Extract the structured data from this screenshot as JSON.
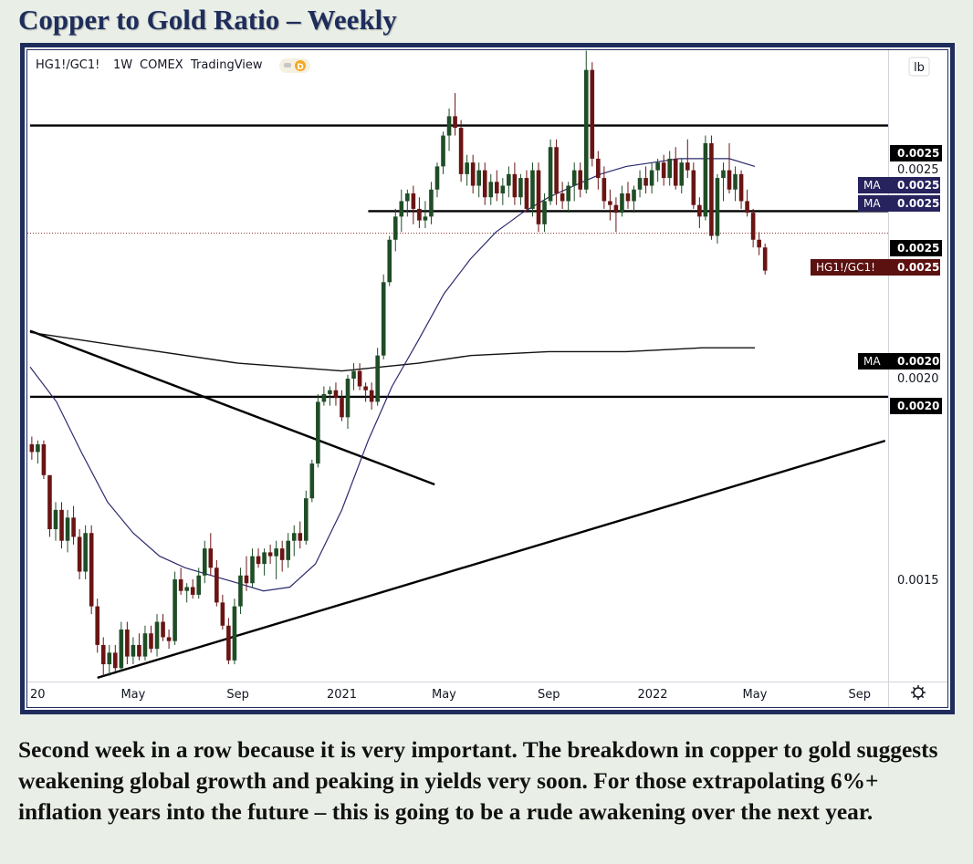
{
  "page_title": "Copper to Gold Ratio – Weekly",
  "caption": "Second week in a row because it is very important. The breakdown in copper to gold suggests weakening global growth and peaking in yields very soon. For those extrapolating 6%+ inflation years into the future – this is going to be a rude awakening over the next year.",
  "chart_legend": {
    "symbol": "HG1!/GC1!",
    "interval": "1W",
    "exchange": "COMEX",
    "source": "TradingView",
    "badge": "D"
  },
  "scale_button": "lb",
  "colors": {
    "up": "#1f4d26",
    "down": "#6a1414",
    "ma_short": "#2a2a6e",
    "ma_long": "#111111",
    "frame": "#1f2d5c"
  },
  "chart_data": {
    "type": "candlestick",
    "x": [
      "2020-01-01",
      "2022-10-01"
    ],
    "xticks": [
      {
        "date": "2020-01-01",
        "label": "20"
      },
      {
        "date": "2020-05-01",
        "label": "May"
      },
      {
        "date": "2020-09-01",
        "label": "Sep"
      },
      {
        "date": "2021-01-01",
        "label": "2021"
      },
      {
        "date": "2021-05-01",
        "label": "May"
      },
      {
        "date": "2021-09-01",
        "label": "Sep"
      },
      {
        "date": "2022-01-01",
        "label": "2022"
      },
      {
        "date": "2022-05-01",
        "label": "May"
      },
      {
        "date": "2022-09-01",
        "label": "Sep"
      }
    ],
    "ylim": [
      0.00121,
      0.00291
    ],
    "yticks": [
      "0.0025",
      "0.0020",
      "0.0015"
    ],
    "candles": [
      [
        "2020-01-03",
        0.00185,
        0.00187,
        0.00181,
        0.00183
      ],
      [
        "2020-01-10",
        0.00183,
        0.00186,
        0.0018,
        0.00185
      ],
      [
        "2020-01-17",
        0.00185,
        0.00186,
        0.00176,
        0.00177
      ],
      [
        "2020-01-24",
        0.00177,
        0.00177,
        0.00161,
        0.00163
      ],
      [
        "2020-01-31",
        0.00163,
        0.0017,
        0.0016,
        0.00168
      ],
      [
        "2020-02-07",
        0.00168,
        0.0017,
        0.00158,
        0.0016
      ],
      [
        "2020-02-14",
        0.0016,
        0.00168,
        0.00157,
        0.00166
      ],
      [
        "2020-02-21",
        0.00166,
        0.00169,
        0.00159,
        0.00161
      ],
      [
        "2020-02-28",
        0.00161,
        0.00163,
        0.0015,
        0.00152
      ],
      [
        "2020-03-06",
        0.00152,
        0.00164,
        0.0015,
        0.00162
      ],
      [
        "2020-03-13",
        0.00162,
        0.00164,
        0.00141,
        0.00143
      ],
      [
        "2020-03-20",
        0.00143,
        0.00145,
        0.00131,
        0.00133
      ],
      [
        "2020-03-27",
        0.00133,
        0.00135,
        0.00125,
        0.00128
      ],
      [
        "2020-04-03",
        0.00128,
        0.00133,
        0.00125,
        0.00131
      ],
      [
        "2020-04-10",
        0.00131,
        0.00133,
        0.00126,
        0.00127
      ],
      [
        "2020-04-17",
        0.00127,
        0.00139,
        0.00126,
        0.00137
      ],
      [
        "2020-04-24",
        0.00137,
        0.00139,
        0.00128,
        0.0013
      ],
      [
        "2020-05-01",
        0.0013,
        0.00135,
        0.00128,
        0.00133
      ],
      [
        "2020-05-08",
        0.00133,
        0.00136,
        0.00129,
        0.0013
      ],
      [
        "2020-05-15",
        0.0013,
        0.00138,
        0.00129,
        0.00136
      ],
      [
        "2020-05-22",
        0.00136,
        0.00138,
        0.00131,
        0.00132
      ],
      [
        "2020-05-29",
        0.00132,
        0.00141,
        0.0013,
        0.00139
      ],
      [
        "2020-06-05",
        0.00139,
        0.00141,
        0.00134,
        0.00135
      ],
      [
        "2020-06-12",
        0.00135,
        0.00137,
        0.00132,
        0.00134
      ],
      [
        "2020-06-19",
        0.00134,
        0.00152,
        0.00133,
        0.0015
      ],
      [
        "2020-06-26",
        0.0015,
        0.00153,
        0.00146,
        0.00147
      ],
      [
        "2020-07-03",
        0.00147,
        0.00149,
        0.00144,
        0.00148
      ],
      [
        "2020-07-10",
        0.00148,
        0.0015,
        0.00145,
        0.00146
      ],
      [
        "2020-07-17",
        0.00146,
        0.00153,
        0.00145,
        0.00151
      ],
      [
        "2020-07-24",
        0.00151,
        0.0016,
        0.00149,
        0.00158
      ],
      [
        "2020-07-31",
        0.00158,
        0.00162,
        0.00151,
        0.00153
      ],
      [
        "2020-08-07",
        0.00153,
        0.00155,
        0.00143,
        0.00144
      ],
      [
        "2020-08-14",
        0.00144,
        0.00146,
        0.00137,
        0.00138
      ],
      [
        "2020-08-21",
        0.00138,
        0.0014,
        0.00128,
        0.00129
      ],
      [
        "2020-08-28",
        0.00129,
        0.00145,
        0.00128,
        0.00143
      ],
      [
        "2020-09-04",
        0.00143,
        0.00153,
        0.00141,
        0.00151
      ],
      [
        "2020-09-11",
        0.00151,
        0.00156,
        0.00147,
        0.00149
      ],
      [
        "2020-09-18",
        0.00149,
        0.00158,
        0.00148,
        0.00156
      ],
      [
        "2020-09-25",
        0.00156,
        0.00158,
        0.00153,
        0.00154
      ],
      [
        "2020-10-02",
        0.00154,
        0.00158,
        0.00151,
        0.00157
      ],
      [
        "2020-10-09",
        0.00157,
        0.00159,
        0.00154,
        0.00156
      ],
      [
        "2020-10-16",
        0.00156,
        0.0016,
        0.0015,
        0.00158
      ],
      [
        "2020-10-23",
        0.00158,
        0.0016,
        0.00152,
        0.00155
      ],
      [
        "2020-10-30",
        0.00155,
        0.00162,
        0.00153,
        0.0016
      ],
      [
        "2020-11-06",
        0.0016,
        0.00164,
        0.00156,
        0.00162
      ],
      [
        "2020-11-13",
        0.00162,
        0.00165,
        0.00158,
        0.0016
      ],
      [
        "2020-11-20",
        0.0016,
        0.00173,
        0.00159,
        0.00171
      ],
      [
        "2020-11-27",
        0.00171,
        0.00181,
        0.0017,
        0.0018
      ],
      [
        "2020-12-04",
        0.0018,
        0.00198,
        0.00179,
        0.00196
      ],
      [
        "2020-12-11",
        0.00196,
        0.002,
        0.00195,
        0.00198
      ],
      [
        "2020-12-18",
        0.00198,
        0.002,
        0.00195,
        0.00199
      ],
      [
        "2020-12-25",
        0.00199,
        0.00201,
        0.00195,
        0.00197
      ],
      [
        "2021-01-01",
        0.00197,
        0.00199,
        0.00191,
        0.00192
      ],
      [
        "2021-01-08",
        0.00192,
        0.00203,
        0.00189,
        0.00202
      ],
      [
        "2021-01-15",
        0.00202,
        0.00206,
        0.00199,
        0.00204
      ],
      [
        "2021-01-22",
        0.00204,
        0.00206,
        0.00199,
        0.002
      ],
      [
        "2021-01-29",
        0.002,
        0.00201,
        0.00196,
        0.00199
      ],
      [
        "2021-02-05",
        0.00199,
        0.00201,
        0.00194,
        0.00196
      ],
      [
        "2021-02-12",
        0.00196,
        0.0021,
        0.00195,
        0.00208
      ],
      [
        "2021-02-19",
        0.00208,
        0.00229,
        0.00207,
        0.00227
      ],
      [
        "2021-02-26",
        0.00227,
        0.00239,
        0.00226,
        0.00238
      ],
      [
        "2021-03-05",
        0.00238,
        0.00246,
        0.00235,
        0.00244
      ],
      [
        "2021-03-12",
        0.00244,
        0.00251,
        0.0024,
        0.00248
      ],
      [
        "2021-03-19",
        0.00248,
        0.00251,
        0.00244,
        0.0025
      ],
      [
        "2021-03-26",
        0.0025,
        0.00252,
        0.00242,
        0.00246
      ],
      [
        "2021-04-02",
        0.00246,
        0.00249,
        0.00241,
        0.00243
      ],
      [
        "2021-04-09",
        0.00243,
        0.00248,
        0.00241,
        0.00244
      ],
      [
        "2021-04-16",
        0.00244,
        0.00253,
        0.00242,
        0.00251
      ],
      [
        "2021-04-23",
        0.00251,
        0.00258,
        0.00249,
        0.00257
      ],
      [
        "2021-04-30",
        0.00257,
        0.00266,
        0.00255,
        0.00265
      ],
      [
        "2021-05-07",
        0.00265,
        0.00272,
        0.00261,
        0.0027
      ],
      [
        "2021-05-14",
        0.0027,
        0.00276,
        0.00265,
        0.00267
      ],
      [
        "2021-05-21",
        0.00267,
        0.00269,
        0.00253,
        0.00255
      ],
      [
        "2021-05-28",
        0.00255,
        0.0026,
        0.00252,
        0.00258
      ],
      [
        "2021-06-04",
        0.00258,
        0.0026,
        0.0025,
        0.00252
      ],
      [
        "2021-06-11",
        0.00252,
        0.00258,
        0.00249,
        0.00256
      ],
      [
        "2021-06-18",
        0.00256,
        0.00258,
        0.00247,
        0.00249
      ],
      [
        "2021-06-25",
        0.00249,
        0.00255,
        0.00247,
        0.00253
      ],
      [
        "2021-07-02",
        0.00253,
        0.00256,
        0.00248,
        0.0025
      ],
      [
        "2021-07-09",
        0.0025,
        0.00254,
        0.00247,
        0.00252
      ],
      [
        "2021-07-16",
        0.00252,
        0.00257,
        0.00249,
        0.00255
      ],
      [
        "2021-07-23",
        0.00255,
        0.00258,
        0.00247,
        0.00249
      ],
      [
        "2021-07-30",
        0.00249,
        0.00255,
        0.00247,
        0.00254
      ],
      [
        "2021-08-06",
        0.00254,
        0.00256,
        0.00245,
        0.00246
      ],
      [
        "2021-08-13",
        0.00246,
        0.00258,
        0.00244,
        0.00256
      ],
      [
        "2021-08-20",
        0.00256,
        0.00258,
        0.0024,
        0.00242
      ],
      [
        "2021-08-27",
        0.00242,
        0.0025,
        0.0024,
        0.00248
      ],
      [
        "2021-09-03",
        0.00248,
        0.00264,
        0.00247,
        0.00262
      ],
      [
        "2021-09-10",
        0.00262,
        0.00264,
        0.00247,
        0.0025
      ],
      [
        "2021-09-17",
        0.0025,
        0.00253,
        0.00246,
        0.00248
      ],
      [
        "2021-09-24",
        0.00248,
        0.00253,
        0.00245,
        0.00252
      ],
      [
        "2021-10-01",
        0.00252,
        0.00258,
        0.00248,
        0.00256
      ],
      [
        "2021-10-08",
        0.00256,
        0.00258,
        0.00249,
        0.00251
      ],
      [
        "2021-10-15",
        0.00251,
        0.00287,
        0.0025,
        0.00282
      ],
      [
        "2021-10-22",
        0.00282,
        0.00284,
        0.00257,
        0.00259
      ],
      [
        "2021-10-29",
        0.00259,
        0.00261,
        0.00251,
        0.00254
      ],
      [
        "2021-11-05",
        0.00254,
        0.00257,
        0.00246,
        0.00248
      ],
      [
        "2021-11-12",
        0.00248,
        0.00251,
        0.00243,
        0.00247
      ],
      [
        "2021-11-19",
        0.00247,
        0.00249,
        0.0024,
        0.00245
      ],
      [
        "2021-11-26",
        0.00245,
        0.00252,
        0.00244,
        0.0025
      ],
      [
        "2021-12-03",
        0.0025,
        0.00253,
        0.00246,
        0.00248
      ],
      [
        "2021-12-10",
        0.00248,
        0.00252,
        0.00245,
        0.00251
      ],
      [
        "2021-12-17",
        0.00251,
        0.00256,
        0.00249,
        0.00254
      ],
      [
        "2021-12-24",
        0.00254,
        0.00257,
        0.0025,
        0.00252
      ],
      [
        "2021-12-31",
        0.00252,
        0.00258,
        0.0025,
        0.00256
      ],
      [
        "2022-01-07",
        0.00256,
        0.00259,
        0.00253,
        0.00258
      ],
      [
        "2022-01-14",
        0.00258,
        0.0026,
        0.00252,
        0.00254
      ],
      [
        "2022-01-21",
        0.00254,
        0.00261,
        0.00252,
        0.00259
      ],
      [
        "2022-01-28",
        0.00259,
        0.00262,
        0.00251,
        0.00252
      ],
      [
        "2022-02-04",
        0.00252,
        0.00259,
        0.0025,
        0.00258
      ],
      [
        "2022-02-11",
        0.00258,
        0.00264,
        0.00254,
        0.00256
      ],
      [
        "2022-02-18",
        0.00256,
        0.00258,
        0.00246,
        0.00247
      ],
      [
        "2022-02-25",
        0.00247,
        0.00249,
        0.00241,
        0.00244
      ],
      [
        "2022-03-04",
        0.00244,
        0.00265,
        0.00243,
        0.00263
      ],
      [
        "2022-03-11",
        0.00263,
        0.00265,
        0.00238,
        0.00239
      ],
      [
        "2022-03-18",
        0.00239,
        0.00255,
        0.00237,
        0.00254
      ],
      [
        "2022-03-25",
        0.00254,
        0.00258,
        0.00248,
        0.00256
      ],
      [
        "2022-04-01",
        0.00256,
        0.00263,
        0.0025,
        0.00251
      ],
      [
        "2022-04-08",
        0.00251,
        0.00257,
        0.00248,
        0.00255
      ],
      [
        "2022-04-15",
        0.00255,
        0.00256,
        0.00246,
        0.00248
      ],
      [
        "2022-04-22",
        0.00248,
        0.00251,
        0.00244,
        0.00245
      ],
      [
        "2022-04-29",
        0.00245,
        0.00246,
        0.00236,
        0.00238
      ],
      [
        "2022-05-06",
        0.00238,
        0.0024,
        0.00234,
        0.00236
      ],
      [
        "2022-05-13",
        0.00236,
        0.00237,
        0.00229,
        0.0023
      ]
    ],
    "ma_short": [
      [
        "2020-01-01",
        0.00205
      ],
      [
        "2020-02-01",
        0.00196
      ],
      [
        "2020-03-01",
        0.00183
      ],
      [
        "2020-04-01",
        0.0017
      ],
      [
        "2020-05-01",
        0.00162
      ],
      [
        "2020-06-01",
        0.00156
      ],
      [
        "2020-07-01",
        0.00153
      ],
      [
        "2020-08-01",
        0.00151
      ],
      [
        "2020-09-01",
        0.00149
      ],
      [
        "2020-10-01",
        0.00147
      ],
      [
        "2020-11-01",
        0.00148
      ],
      [
        "2020-12-01",
        0.00154
      ],
      [
        "2021-01-01",
        0.00168
      ],
      [
        "2021-02-01",
        0.00186
      ],
      [
        "2021-03-01",
        0.002
      ],
      [
        "2021-04-01",
        0.00212
      ],
      [
        "2021-05-01",
        0.00224
      ],
      [
        "2021-06-01",
        0.00233
      ],
      [
        "2021-07-01",
        0.0024
      ],
      [
        "2021-08-01",
        0.00245
      ],
      [
        "2021-09-01",
        0.00249
      ],
      [
        "2021-10-01",
        0.00252
      ],
      [
        "2021-11-01",
        0.00255
      ],
      [
        "2021-12-01",
        0.00257
      ],
      [
        "2022-01-01",
        0.00258
      ],
      [
        "2022-02-01",
        0.00259
      ],
      [
        "2022-03-01",
        0.00259
      ],
      [
        "2022-04-01",
        0.00259
      ],
      [
        "2022-05-01",
        0.00257
      ]
    ],
    "ma_long": [
      [
        "2020-01-01",
        0.00214
      ],
      [
        "2020-05-01",
        0.0021
      ],
      [
        "2020-09-01",
        0.00206
      ],
      [
        "2021-01-01",
        0.00204
      ],
      [
        "2021-04-01",
        0.00206
      ],
      [
        "2021-06-01",
        0.00208
      ],
      [
        "2021-09-01",
        0.00209
      ],
      [
        "2021-12-01",
        0.00209
      ],
      [
        "2022-03-01",
        0.0021
      ],
      [
        "2022-05-01",
        0.0021
      ]
    ],
    "hlines": [
      {
        "y": 0.002676,
        "x0": "2020-01-01"
      },
      {
        "y": 0.002454,
        "x0": "2021-02-01"
      },
      {
        "y": 0.001973,
        "x0": "2020-01-01"
      }
    ],
    "trendlines": [
      {
        "from": [
          "2020-01-01",
          0.002144
        ],
        "to": [
          "2021-04-20",
          0.001746
        ]
      },
      {
        "from": [
          "2020-03-20",
          0.001245
        ],
        "to": [
          "2022-10-01",
          0.001859
        ]
      }
    ],
    "price_line": 0.002397,
    "price_tags": [
      {
        "label": "",
        "value": "0.0025",
        "kind": "line"
      },
      {
        "label": "",
        "value": "0.0025",
        "kind": "plain"
      },
      {
        "label": "MA",
        "value": "0.0025",
        "kind": "ma"
      },
      {
        "label": "MA",
        "value": "0.0025",
        "kind": "ma"
      },
      {
        "label": "",
        "value": "0.0025",
        "kind": "line"
      },
      {
        "label": "HG1!/GC1!",
        "value": "0.0025",
        "kind": "price"
      },
      {
        "label": "MA",
        "value": "0.0020",
        "kind": "malong"
      },
      {
        "label": "",
        "value": "0.0020",
        "kind": "plain"
      },
      {
        "label": "",
        "value": "0.0020",
        "kind": "line"
      }
    ]
  }
}
